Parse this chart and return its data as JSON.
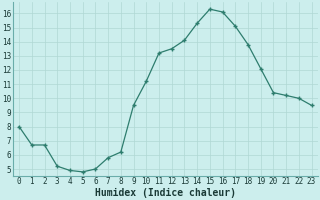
{
  "x": [
    0,
    1,
    2,
    3,
    4,
    5,
    6,
    7,
    8,
    9,
    10,
    11,
    12,
    13,
    14,
    15,
    16,
    17,
    18,
    19,
    20,
    21,
    22,
    23
  ],
  "y": [
    8.0,
    6.7,
    6.7,
    5.2,
    4.9,
    4.8,
    5.0,
    5.8,
    6.2,
    9.5,
    11.2,
    13.2,
    13.5,
    14.1,
    15.3,
    16.3,
    16.1,
    15.1,
    13.8,
    12.1,
    10.4,
    10.2,
    10.0,
    9.5
  ],
  "line_color": "#2e7d6e",
  "bg_color": "#cceeed",
  "grid_color_major": "#b0d8d4",
  "grid_color_minor": "#c4e8e4",
  "xlabel": "Humidex (Indice chaleur)",
  "ylim": [
    4.5,
    16.8
  ],
  "xlim": [
    -0.5,
    23.5
  ],
  "yticks": [
    5,
    6,
    7,
    8,
    9,
    10,
    11,
    12,
    13,
    14,
    15,
    16
  ],
  "xticks": [
    0,
    1,
    2,
    3,
    4,
    5,
    6,
    7,
    8,
    9,
    10,
    11,
    12,
    13,
    14,
    15,
    16,
    17,
    18,
    19,
    20,
    21,
    22,
    23
  ],
  "tick_fontsize": 5.5,
  "xlabel_fontsize": 7,
  "spine_color": "#6aadaa"
}
